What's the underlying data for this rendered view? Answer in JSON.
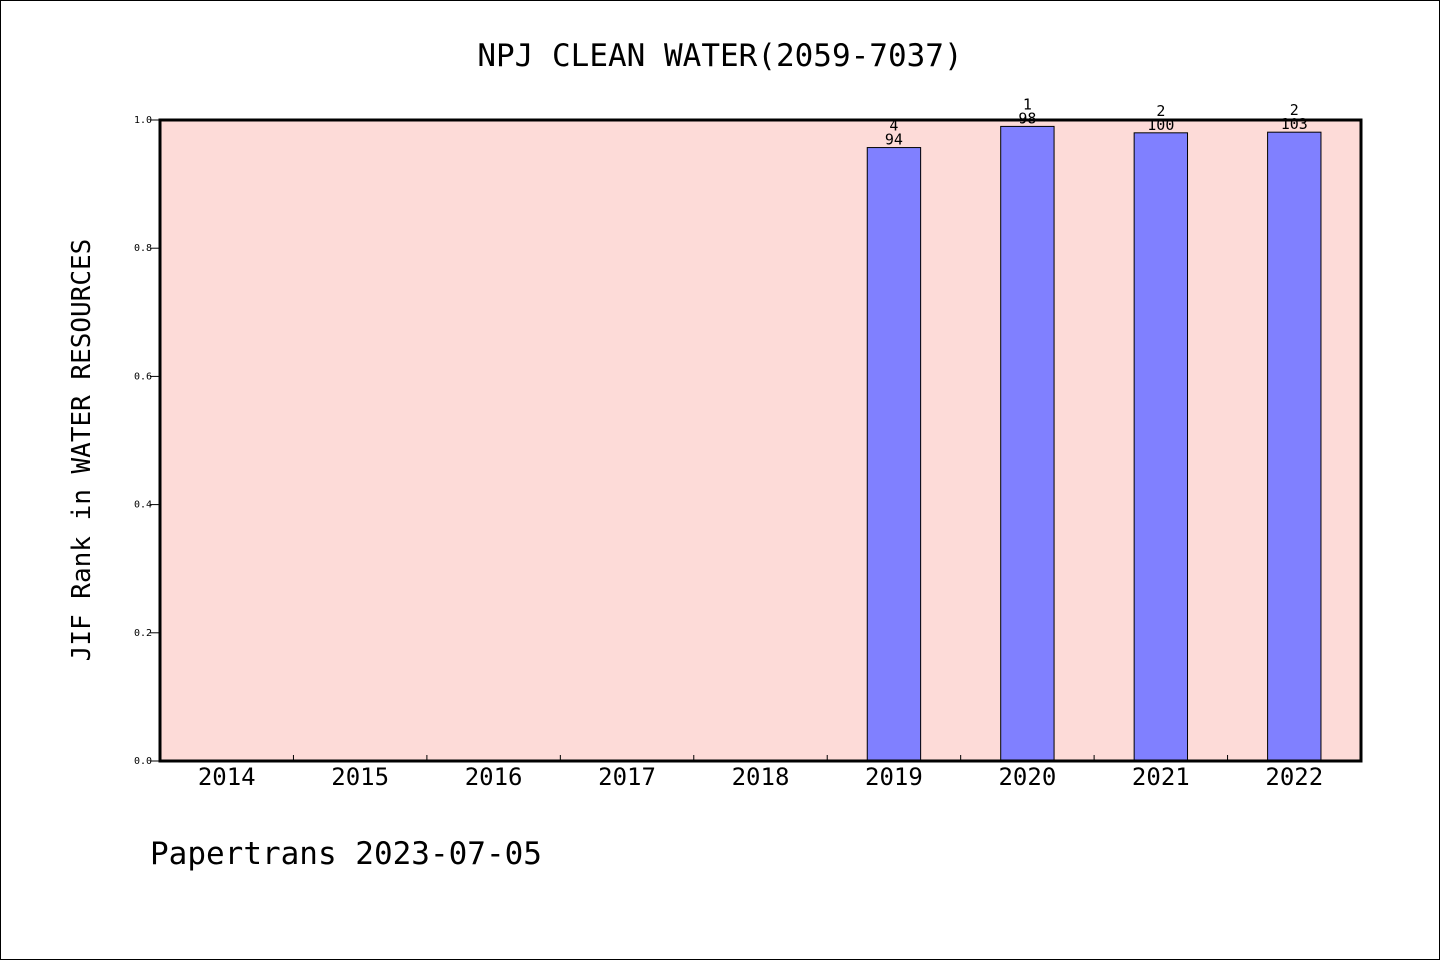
{
  "chart_data": {
    "type": "bar",
    "title": "NPJ CLEAN WATER(2059-7037)",
    "xlabel": "",
    "ylabel": "JIF Rank in WATER RESOURCES",
    "categories": [
      "2014",
      "2015",
      "2016",
      "2017",
      "2018",
      "2019",
      "2020",
      "2021",
      "2022"
    ],
    "values": [
      null,
      null,
      null,
      null,
      null,
      0.957,
      0.99,
      0.98,
      0.981
    ],
    "ranks": [
      null,
      null,
      null,
      null,
      null,
      "4",
      "1",
      "2",
      "2"
    ],
    "totals": [
      null,
      null,
      null,
      null,
      null,
      "94",
      "98",
      "100",
      "103"
    ],
    "ylim": [
      0,
      1.0
    ],
    "yticks": [
      "0.0",
      "0.2",
      "0.4",
      "0.6",
      "0.8",
      "1.0"
    ],
    "grid": false,
    "legend": "none"
  },
  "colors": {
    "plot_background": "#fddbd8",
    "bar_fill": "#8080ff",
    "bar_stroke": "#000000"
  },
  "footer": "Papertrans 2023-07-05"
}
